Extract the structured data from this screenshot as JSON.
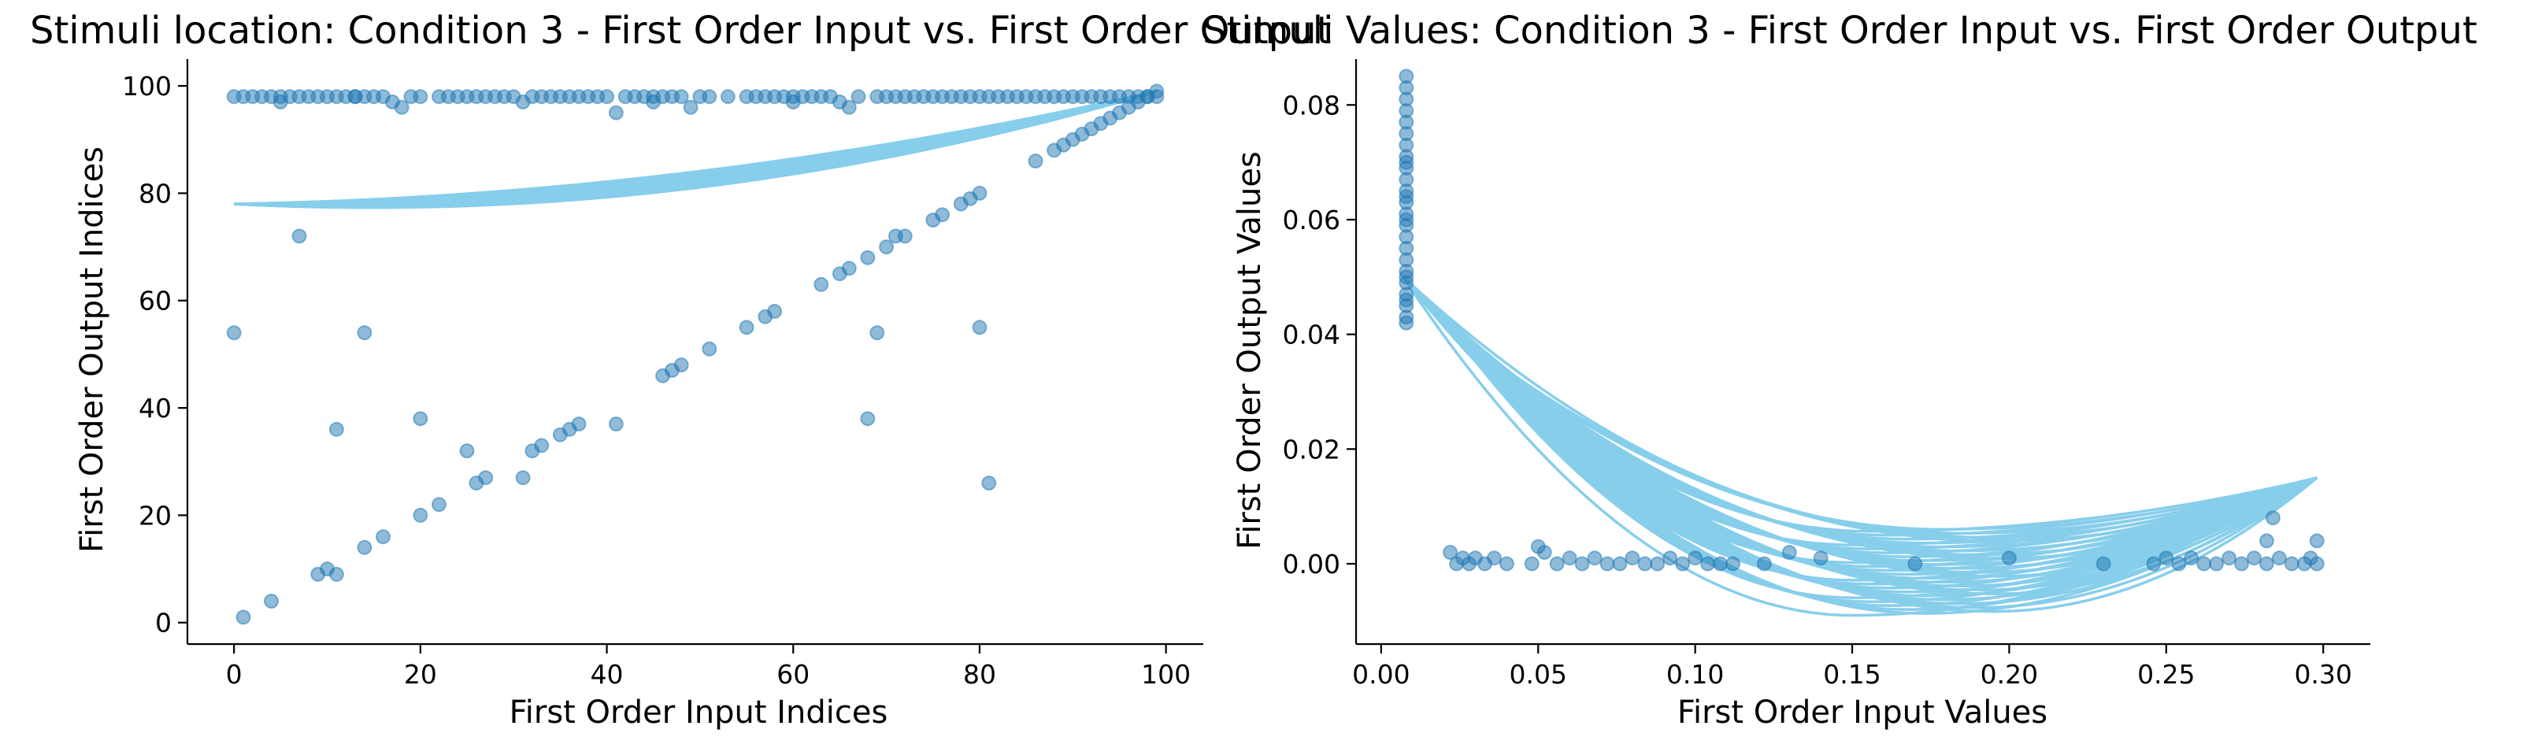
{
  "chart_data": [
    {
      "type": "scatter",
      "title": "Stimuli location: Condition 3 - First Order Input vs. First Order Output",
      "xlabel": "First Order Input Indices",
      "ylabel": "First Order Output Indices",
      "xlim": [
        -5,
        104
      ],
      "ylim": [
        -4,
        105
      ],
      "xticks": [
        0,
        20,
        40,
        60,
        80,
        100
      ],
      "yticks": [
        0,
        20,
        40,
        60,
        80,
        100
      ],
      "xtick_labels": [
        "0",
        "20",
        "40",
        "60",
        "80",
        "100"
      ],
      "ytick_labels": [
        "0",
        "20",
        "40",
        "60",
        "80",
        "100"
      ],
      "grid": false,
      "point_color": "#1f77b4",
      "curve_color": "#87ceeb",
      "curve_shape": "parabolic arcs from (0, 78) to (99, 99)",
      "curve_count": 45,
      "curve_mid_offset_range": [
        -7.5,
        -4.5
      ],
      "points": [
        [
          1,
          98
        ],
        [
          2,
          98
        ],
        [
          3,
          98
        ],
        [
          4,
          98
        ],
        [
          5,
          98
        ],
        [
          6,
          98
        ],
        [
          7,
          98
        ],
        [
          8,
          98
        ],
        [
          9,
          98
        ],
        [
          10,
          98
        ],
        [
          11,
          98
        ],
        [
          12,
          98
        ],
        [
          13,
          98
        ],
        [
          14,
          98
        ],
        [
          15,
          98
        ],
        [
          16,
          98
        ],
        [
          17,
          97
        ],
        [
          18,
          96
        ],
        [
          19,
          98
        ],
        [
          20,
          98
        ],
        [
          22,
          98
        ],
        [
          23,
          98
        ],
        [
          24,
          98
        ],
        [
          25,
          98
        ],
        [
          26,
          98
        ],
        [
          27,
          98
        ],
        [
          28,
          98
        ],
        [
          29,
          98
        ],
        [
          30,
          98
        ],
        [
          31,
          97
        ],
        [
          32,
          98
        ],
        [
          33,
          98
        ],
        [
          34,
          98
        ],
        [
          35,
          98
        ],
        [
          36,
          98
        ],
        [
          37,
          98
        ],
        [
          38,
          98
        ],
        [
          39,
          98
        ],
        [
          40,
          98
        ],
        [
          41,
          95
        ],
        [
          42,
          98
        ],
        [
          43,
          98
        ],
        [
          44,
          98
        ],
        [
          45,
          98
        ],
        [
          46,
          98
        ],
        [
          47,
          98
        ],
        [
          48,
          98
        ],
        [
          49,
          96
        ],
        [
          50,
          98
        ],
        [
          51,
          98
        ],
        [
          53,
          98
        ],
        [
          55,
          98
        ],
        [
          56,
          98
        ],
        [
          57,
          98
        ],
        [
          58,
          98
        ],
        [
          59,
          98
        ],
        [
          60,
          98
        ],
        [
          61,
          98
        ],
        [
          62,
          98
        ],
        [
          63,
          98
        ],
        [
          64,
          98
        ],
        [
          65,
          97
        ],
        [
          66,
          96
        ],
        [
          67,
          98
        ],
        [
          69,
          98
        ],
        [
          70,
          98
        ],
        [
          71,
          98
        ],
        [
          72,
          98
        ],
        [
          73,
          98
        ],
        [
          74,
          98
        ],
        [
          75,
          98
        ],
        [
          76,
          98
        ],
        [
          77,
          98
        ],
        [
          78,
          98
        ],
        [
          79,
          98
        ],
        [
          80,
          98
        ],
        [
          81,
          98
        ],
        [
          82,
          98
        ],
        [
          83,
          98
        ],
        [
          84,
          98
        ],
        [
          85,
          98
        ],
        [
          86,
          98
        ],
        [
          87,
          98
        ],
        [
          88,
          98
        ],
        [
          89,
          98
        ],
        [
          90,
          98
        ],
        [
          91,
          98
        ],
        [
          92,
          98
        ],
        [
          93,
          98
        ],
        [
          94,
          98
        ],
        [
          95,
          98
        ],
        [
          96,
          98
        ],
        [
          97,
          98
        ],
        [
          98,
          98
        ],
        [
          99,
          98
        ],
        [
          0,
          98
        ],
        [
          5,
          97
        ],
        [
          13,
          98
        ],
        [
          45,
          97
        ],
        [
          60,
          97
        ],
        [
          1,
          1
        ],
        [
          4,
          4
        ],
        [
          9,
          9
        ],
        [
          10,
          10
        ],
        [
          11,
          9
        ],
        [
          14,
          14
        ],
        [
          16,
          16
        ],
        [
          20,
          20
        ],
        [
          22,
          22
        ],
        [
          26,
          26
        ],
        [
          27,
          27
        ],
        [
          31,
          27
        ],
        [
          32,
          32
        ],
        [
          33,
          33
        ],
        [
          35,
          35
        ],
        [
          36,
          36
        ],
        [
          37,
          37
        ],
        [
          46,
          46
        ],
        [
          47,
          47
        ],
        [
          48,
          48
        ],
        [
          51,
          51
        ],
        [
          55,
          55
        ],
        [
          57,
          57
        ],
        [
          58,
          58
        ],
        [
          63,
          63
        ],
        [
          65,
          65
        ],
        [
          66,
          66
        ],
        [
          68,
          68
        ],
        [
          70,
          70
        ],
        [
          71,
          72
        ],
        [
          72,
          72
        ],
        [
          75,
          75
        ],
        [
          76,
          76
        ],
        [
          78,
          78
        ],
        [
          79,
          79
        ],
        [
          80,
          80
        ],
        [
          86,
          86
        ],
        [
          88,
          88
        ],
        [
          89,
          89
        ],
        [
          90,
          90
        ],
        [
          91,
          91
        ],
        [
          92,
          92
        ],
        [
          93,
          93
        ],
        [
          94,
          94
        ],
        [
          95,
          95
        ],
        [
          96,
          96
        ],
        [
          97,
          97
        ],
        [
          98,
          98
        ],
        [
          99,
          99
        ],
        [
          0,
          54
        ],
        [
          7,
          72
        ],
        [
          11,
          36
        ],
        [
          14,
          54
        ],
        [
          20,
          38
        ],
        [
          25,
          32
        ],
        [
          41,
          37
        ],
        [
          68,
          38
        ],
        [
          69,
          54
        ],
        [
          80,
          55
        ],
        [
          81,
          26
        ]
      ]
    },
    {
      "type": "scatter",
      "title": "Stimuli Values: Condition 3 - First Order Input vs. First Order Output",
      "xlabel": "First Order Input Values",
      "ylabel": "First Order Output Values",
      "xlim": [
        -0.008,
        0.315
      ],
      "ylim": [
        -0.014,
        0.088
      ],
      "xticks": [
        0.0,
        0.05,
        0.1,
        0.15,
        0.2,
        0.25,
        0.3
      ],
      "yticks": [
        0.0,
        0.02,
        0.04,
        0.06,
        0.08
      ],
      "xtick_labels": [
        "0.00",
        "0.05",
        "0.10",
        "0.15",
        "0.20",
        "0.25",
        "0.30"
      ],
      "ytick_labels": [
        "0.00",
        "0.02",
        "0.04",
        "0.06",
        "0.08"
      ],
      "grid": false,
      "point_color": "#1f77b4",
      "curve_color": "#87ceeb",
      "curve_shape": "curves from (0.007, 0.050) and (0.022, 0.041) to (0.298, 0.015) dipping below zero",
      "curve_count": 45,
      "curve_min_range": [
        -0.009,
        0.006
      ],
      "points": [
        [
          0.008,
          0.085
        ],
        [
          0.008,
          0.083
        ],
        [
          0.008,
          0.081
        ],
        [
          0.008,
          0.079
        ],
        [
          0.008,
          0.077
        ],
        [
          0.008,
          0.075
        ],
        [
          0.008,
          0.073
        ],
        [
          0.008,
          0.071
        ],
        [
          0.008,
          0.069
        ],
        [
          0.008,
          0.067
        ],
        [
          0.008,
          0.065
        ],
        [
          0.008,
          0.063
        ],
        [
          0.008,
          0.061
        ],
        [
          0.008,
          0.059
        ],
        [
          0.008,
          0.057
        ],
        [
          0.008,
          0.055
        ],
        [
          0.008,
          0.053
        ],
        [
          0.008,
          0.051
        ],
        [
          0.008,
          0.049
        ],
        [
          0.008,
          0.047
        ],
        [
          0.008,
          0.045
        ],
        [
          0.008,
          0.043
        ],
        [
          0.008,
          0.042
        ],
        [
          0.008,
          0.064
        ],
        [
          0.008,
          0.06
        ],
        [
          0.008,
          0.07
        ],
        [
          0.008,
          0.05
        ],
        [
          0.008,
          0.046
        ],
        [
          0.022,
          0.002
        ],
        [
          0.024,
          0.0
        ],
        [
          0.026,
          0.001
        ],
        [
          0.028,
          0.0
        ],
        [
          0.03,
          0.001
        ],
        [
          0.033,
          0.0
        ],
        [
          0.036,
          0.001
        ],
        [
          0.04,
          0.0
        ],
        [
          0.048,
          0.0
        ],
        [
          0.052,
          0.002
        ],
        [
          0.056,
          0.0
        ],
        [
          0.06,
          0.001
        ],
        [
          0.064,
          0.0
        ],
        [
          0.068,
          0.001
        ],
        [
          0.072,
          0.0
        ],
        [
          0.076,
          0.0
        ],
        [
          0.08,
          0.001
        ],
        [
          0.084,
          0.0
        ],
        [
          0.088,
          0.0
        ],
        [
          0.092,
          0.001
        ],
        [
          0.096,
          0.0
        ],
        [
          0.1,
          0.001
        ],
        [
          0.104,
          0.0
        ],
        [
          0.108,
          0.0
        ],
        [
          0.112,
          0.0
        ],
        [
          0.13,
          0.002
        ],
        [
          0.17,
          0.0
        ],
        [
          0.2,
          0.001
        ],
        [
          0.23,
          0.0
        ],
        [
          0.246,
          0.0
        ],
        [
          0.25,
          0.001
        ],
        [
          0.254,
          0.0
        ],
        [
          0.258,
          0.001
        ],
        [
          0.262,
          0.0
        ],
        [
          0.266,
          0.0
        ],
        [
          0.27,
          0.001
        ],
        [
          0.274,
          0.0
        ],
        [
          0.278,
          0.001
        ],
        [
          0.282,
          0.0
        ],
        [
          0.286,
          0.001
        ],
        [
          0.29,
          0.0
        ],
        [
          0.294,
          0.0
        ],
        [
          0.296,
          0.001
        ],
        [
          0.298,
          0.0
        ],
        [
          0.298,
          0.004
        ],
        [
          0.282,
          0.004
        ],
        [
          0.284,
          0.008
        ],
        [
          0.05,
          0.003
        ],
        [
          0.122,
          0.0
        ],
        [
          0.14,
          0.001
        ]
      ]
    }
  ]
}
